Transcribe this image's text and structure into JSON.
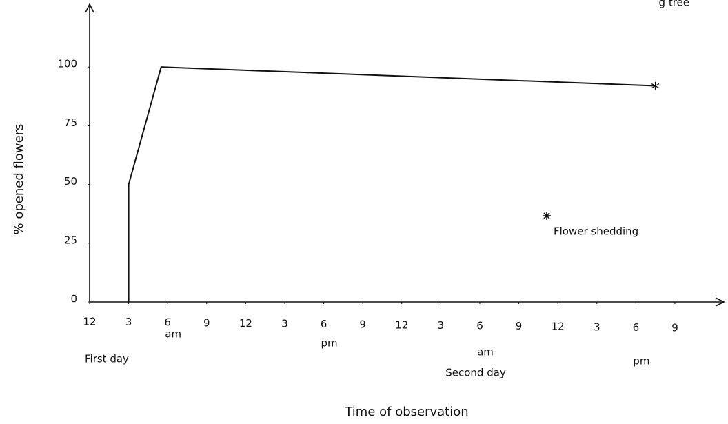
{
  "chart_data": {
    "type": "line",
    "title": "g tree",
    "ylabel": "% opened flowers",
    "xlabel": "Time of observation",
    "x": [
      3,
      3,
      5.5,
      43.5
    ],
    "series": [
      {
        "color": "#111111",
        "values": [
          0,
          50,
          100,
          92
        ]
      }
    ],
    "end_marker": "*",
    "annotation": "Flower shedding",
    "xlim": [
      0,
      48.5
    ],
    "xticks": [
      {
        "value": 0,
        "label": "12"
      },
      3,
      6,
      9,
      12,
      {
        "value": 15,
        "label": "3"
      },
      {
        "value": 18,
        "label": "6"
      },
      {
        "value": 21,
        "label": "9"
      },
      {
        "value": 24,
        "label": "12"
      },
      {
        "value": 27,
        "label": "3"
      },
      {
        "value": 30,
        "label": "6"
      },
      {
        "value": 33,
        "label": "9"
      },
      {
        "value": 36,
        "label": "12"
      },
      {
        "value": 39,
        "label": "3"
      },
      {
        "value": 42,
        "label": "6"
      },
      {
        "value": 45,
        "label": "9"
      }
    ],
    "tick_sublabels": [
      "am",
      "pm",
      "am",
      "pm"
    ],
    "day_labels": [
      "First day",
      "Second day"
    ],
    "ylim": [
      0,
      125
    ],
    "yticks": [
      0,
      25,
      50,
      75,
      100
    ]
  }
}
